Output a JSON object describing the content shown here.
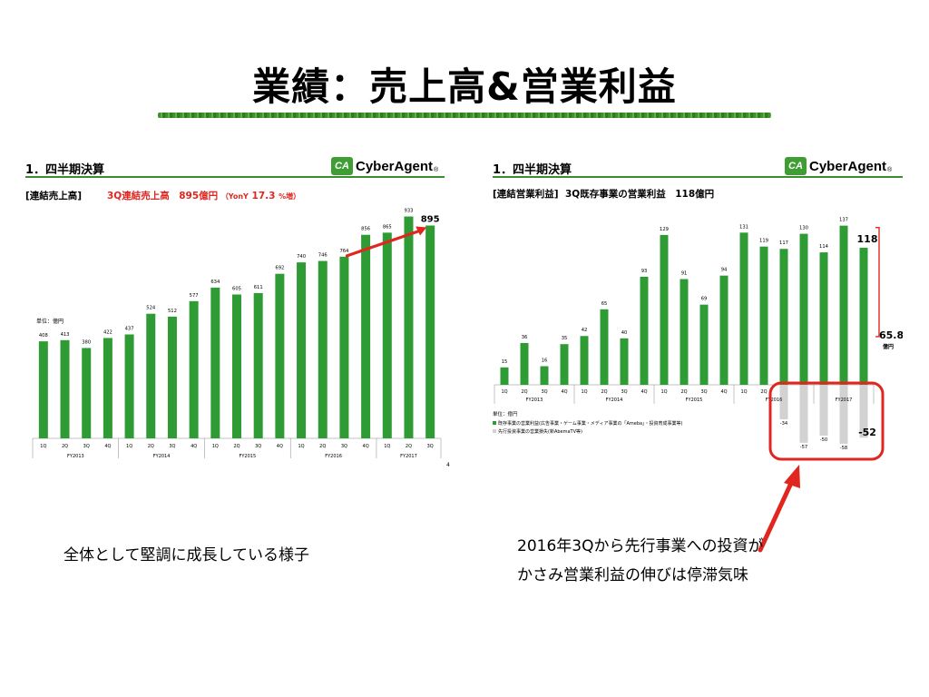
{
  "slide": {
    "title": "業績：売上高&営業利益",
    "caption_left": "全体として堅調に成長している様子",
    "caption_right_line1": "2016年3Qから先行事業への投資が",
    "caption_right_line2": "かさみ営業利益の伸びは停滞気味"
  },
  "colors": {
    "bar_green": "#2e9b35",
    "invest_gray": "#d2d2d2",
    "highlight_red": "#e0261f"
  },
  "left_panel": {
    "heading": "1．四半期決算",
    "logo_mark": "CA",
    "logo_text": "CyberAgent",
    "logo_suffix": "®",
    "tag": "[連結売上高]",
    "headline": "3Q連結売上高　895億円",
    "yoy_prefix": "（YonY",
    "yoy_value": "17.3",
    "yoy_suffix": "%増）",
    "unit": "単位：億円",
    "page_number": "4"
  },
  "right_panel": {
    "heading": "1．四半期決算",
    "logo_mark": "CA",
    "logo_text": "CyberAgent",
    "logo_suffix": "®",
    "tag": "[連結営業利益]",
    "headline": "3Q既存事業の営業利益　118億円",
    "bracket_value": "65.8",
    "bracket_unit": "億円",
    "legend_unit": "単位：億円",
    "legend_green": "既存事業の営業利益(広告事業・ゲーム事業・メディア事業の「Ameba」・投資育成事業等)",
    "legend_gray": "先行投資事業の営業損失(新AbemaTV等)"
  },
  "chart_data": [
    {
      "type": "bar",
      "title": "[連結売上高]",
      "categories": [
        "1Q",
        "2Q",
        "3Q",
        "4Q",
        "1Q",
        "2Q",
        "3Q",
        "4Q",
        "1Q",
        "2Q",
        "3Q",
        "4Q",
        "1Q",
        "2Q",
        "3Q",
        "4Q",
        "1Q",
        "2Q",
        "3Q"
      ],
      "groups": [
        {
          "label": "FY2013",
          "count": 4
        },
        {
          "label": "FY2014",
          "count": 4
        },
        {
          "label": "FY2015",
          "count": 4
        },
        {
          "label": "FY2016",
          "count": 4
        },
        {
          "label": "FY2017",
          "count": 3
        }
      ],
      "values": [
        408,
        413,
        380,
        422,
        437,
        524,
        512,
        577,
        634,
        605,
        611,
        692,
        740,
        746,
        764,
        856,
        865,
        933,
        895
      ],
      "ylim": [
        0,
        1000
      ],
      "unit": "単位：億円",
      "annotations": [
        "trend arrow rising from FY2016 3Q to FY2017 3Q"
      ]
    },
    {
      "type": "bar",
      "title": "[連結営業利益]",
      "categories": [
        "1Q",
        "2Q",
        "3Q",
        "4Q",
        "1Q",
        "2Q",
        "3Q",
        "4Q",
        "1Q",
        "2Q",
        "3Q",
        "4Q",
        "1Q",
        "2Q",
        "3Q",
        "4Q",
        "1Q",
        "2Q",
        "3Q"
      ],
      "groups": [
        {
          "label": "FY2013",
          "count": 4
        },
        {
          "label": "FY2014",
          "count": 4
        },
        {
          "label": "FY2015",
          "count": 4
        },
        {
          "label": "FY2016",
          "count": 4
        },
        {
          "label": "FY2017",
          "count": 3
        }
      ],
      "series": [
        {
          "name": "既存事業の営業利益",
          "values": [
            15,
            36,
            16,
            35,
            42,
            65,
            40,
            93,
            129,
            91,
            69,
            94,
            131,
            119,
            117,
            130,
            114,
            137,
            118
          ]
        },
        {
          "name": "先行投資事業の営業損失",
          "values": [
            null,
            null,
            null,
            null,
            null,
            null,
            null,
            null,
            null,
            null,
            null,
            null,
            null,
            null,
            -34,
            -57,
            -50,
            -58,
            -52
          ]
        }
      ],
      "unit": "単位：億円",
      "annotations": [
        "red rounded box around FY2016 3Q – FY2017 3Q losses",
        "red arrow pointing at the box"
      ]
    }
  ]
}
